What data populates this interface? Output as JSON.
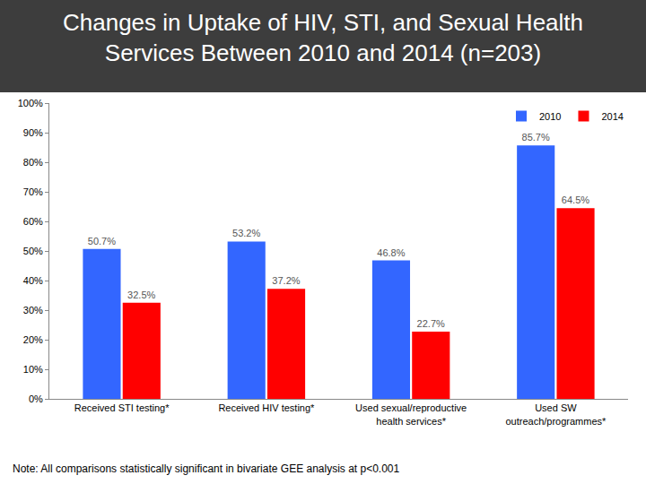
{
  "chart_data": {
    "type": "bar",
    "title": "Changes in Uptake of HIV, STI, and Sexual Health\nServices Between 2010 and 2014 (n=203)",
    "categories": [
      "Received STI testing*",
      "Received HIV testing*",
      "Used sexual/reproductive health services*",
      "Used SW outreach/programmes*"
    ],
    "series": [
      {
        "name": "2010",
        "color": "#3366ff",
        "values": [
          50.7,
          53.2,
          46.8,
          85.7
        ],
        "value_labels": [
          "50.7%",
          "53.2%",
          "46.8%",
          "85.7%"
        ]
      },
      {
        "name": "2014",
        "color": "#ff0000",
        "values": [
          32.5,
          37.2,
          22.7,
          64.5
        ],
        "value_labels": [
          "32.5%",
          "37.2%",
          "22.7%",
          "64.5%"
        ]
      }
    ],
    "ylim": [
      0,
      100
    ],
    "yticks": [
      {
        "value": 0,
        "label": "0%"
      },
      {
        "value": 10,
        "label": "10%"
      },
      {
        "value": 20,
        "label": "20%"
      },
      {
        "value": 30,
        "label": "30%"
      },
      {
        "value": 40,
        "label": "40%"
      },
      {
        "value": 50,
        "label": "50%"
      },
      {
        "value": 60,
        "label": "60%"
      },
      {
        "value": 70,
        "label": "70%"
      },
      {
        "value": 80,
        "label": "80%"
      },
      {
        "value": 90,
        "label": "90%"
      },
      {
        "value": 100,
        "label": "100%"
      }
    ],
    "grid": false,
    "legend": "top right",
    "data_labels": true,
    "annotations": [
      "Note: All comparisons statistically significant in bivariate GEE analysis at p<0.001"
    ]
  }
}
